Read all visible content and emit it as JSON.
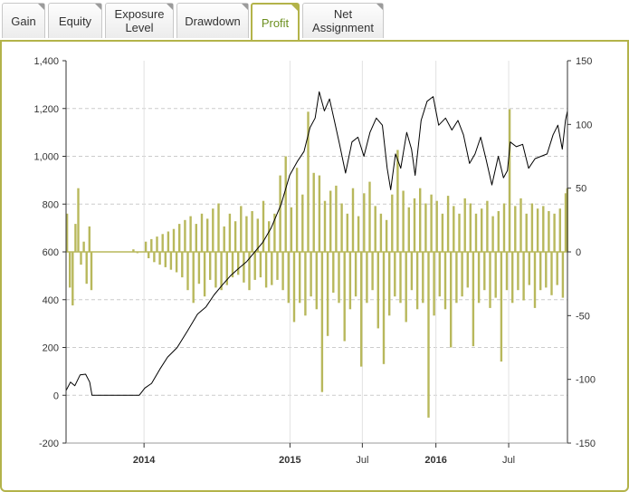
{
  "tabs": [
    {
      "label": "Gain",
      "active": false
    },
    {
      "label": "Equity",
      "active": false
    },
    {
      "label": "Exposure\nLevel",
      "active": false
    },
    {
      "label": "Drawdown",
      "active": false
    },
    {
      "label": "Profit",
      "active": true
    },
    {
      "label": "Net\nAssignment",
      "active": false
    }
  ],
  "colors": {
    "line": "#000000",
    "bars": "#b8b85c",
    "accent": "#b3b34a",
    "grid": "#cccccc"
  },
  "chart_data": {
    "type": "bar+line",
    "title": "",
    "grid": true,
    "x_axis": {
      "type": "date",
      "range": [
        "2013-06-20",
        "2016-11-25"
      ],
      "ticks": [
        {
          "label": "2014",
          "date": "2014-01-01",
          "bold": true
        },
        {
          "label": "2015",
          "date": "2015-01-01",
          "bold": true
        },
        {
          "label": "Jul",
          "date": "2015-07-01",
          "bold": false
        },
        {
          "label": "2016",
          "date": "2016-01-01",
          "bold": true
        },
        {
          "label": "Jul",
          "date": "2016-07-01",
          "bold": false
        }
      ]
    },
    "y_left": {
      "min": -200,
      "max": 1400,
      "ticks": [
        "-200",
        "0",
        "200",
        "400",
        "600",
        "800",
        "1,000",
        "1,200",
        "1,400"
      ],
      "values": [
        -200,
        0,
        200,
        400,
        600,
        800,
        1000,
        1200,
        1400
      ]
    },
    "y_right": {
      "min": -150,
      "max": 150,
      "ticks": [
        "-150",
        "-100",
        "-50",
        "0",
        "50",
        "100",
        "150"
      ],
      "values": [
        -150,
        -100,
        -50,
        0,
        50,
        100,
        150
      ]
    },
    "series": [
      {
        "kind": "line",
        "axis": "left",
        "points": [
          [
            "2013-06-20",
            20
          ],
          [
            "2013-07-01",
            55
          ],
          [
            "2013-07-12",
            40
          ],
          [
            "2013-07-25",
            85
          ],
          [
            "2013-08-08",
            88
          ],
          [
            "2013-08-18",
            55
          ],
          [
            "2013-08-24",
            0
          ],
          [
            "2013-09-20",
            0
          ],
          [
            "2013-10-20",
            0
          ],
          [
            "2013-11-20",
            0
          ],
          [
            "2013-12-20",
            0
          ],
          [
            "2014-01-03",
            30
          ],
          [
            "2014-01-20",
            50
          ],
          [
            "2014-02-10",
            110
          ],
          [
            "2014-03-01",
            160
          ],
          [
            "2014-03-25",
            200
          ],
          [
            "2014-04-20",
            270
          ],
          [
            "2014-05-15",
            340
          ],
          [
            "2014-06-05",
            370
          ],
          [
            "2014-06-25",
            420
          ],
          [
            "2014-07-15",
            460
          ],
          [
            "2014-08-05",
            500
          ],
          [
            "2014-08-25",
            530
          ],
          [
            "2014-09-15",
            560
          ],
          [
            "2014-10-05",
            600
          ],
          [
            "2014-10-25",
            640
          ],
          [
            "2014-11-15",
            700
          ],
          [
            "2014-12-10",
            800
          ],
          [
            "2014-12-31",
            920
          ],
          [
            "2015-01-20",
            980
          ],
          [
            "2015-02-05",
            1020
          ],
          [
            "2015-02-20",
            1120
          ],
          [
            "2015-03-05",
            1160
          ],
          [
            "2015-03-15",
            1270
          ],
          [
            "2015-03-28",
            1190
          ],
          [
            "2015-04-10",
            1240
          ],
          [
            "2015-04-22",
            1150
          ],
          [
            "2015-05-05",
            1050
          ],
          [
            "2015-05-20",
            930
          ],
          [
            "2015-06-05",
            1060
          ],
          [
            "2015-06-20",
            1080
          ],
          [
            "2015-07-05",
            1000
          ],
          [
            "2015-07-20",
            1100
          ],
          [
            "2015-08-05",
            1160
          ],
          [
            "2015-08-20",
            1130
          ],
          [
            "2015-09-01",
            950
          ],
          [
            "2015-09-10",
            860
          ],
          [
            "2015-09-22",
            1010
          ],
          [
            "2015-10-05",
            950
          ],
          [
            "2015-10-20",
            1100
          ],
          [
            "2015-11-01",
            1030
          ],
          [
            "2015-11-10",
            920
          ],
          [
            "2015-11-25",
            1150
          ],
          [
            "2015-12-10",
            1230
          ],
          [
            "2015-12-25",
            1250
          ],
          [
            "2016-01-08",
            1130
          ],
          [
            "2016-01-25",
            1160
          ],
          [
            "2016-02-10",
            1110
          ],
          [
            "2016-02-25",
            1150
          ],
          [
            "2016-03-10",
            1090
          ],
          [
            "2016-03-25",
            970
          ],
          [
            "2016-04-08",
            1010
          ],
          [
            "2016-04-22",
            1080
          ],
          [
            "2016-05-05",
            990
          ],
          [
            "2016-05-20",
            880
          ],
          [
            "2016-06-05",
            1000
          ],
          [
            "2016-06-18",
            910
          ],
          [
            "2016-06-28",
            940
          ],
          [
            "2016-07-05",
            1060
          ],
          [
            "2016-07-20",
            1040
          ],
          [
            "2016-08-05",
            1050
          ],
          [
            "2016-08-20",
            950
          ],
          [
            "2016-09-05",
            990
          ],
          [
            "2016-09-20",
            1000
          ],
          [
            "2016-10-05",
            1010
          ],
          [
            "2016-10-20",
            1090
          ],
          [
            "2016-11-01",
            1130
          ],
          [
            "2016-11-12",
            1030
          ],
          [
            "2016-11-20",
            1150
          ],
          [
            "2016-11-25",
            1190
          ]
        ]
      },
      {
        "kind": "bar",
        "axis": "right",
        "points": [
          [
            "2013-06-22",
            30
          ],
          [
            "2013-06-29",
            -28
          ],
          [
            "2013-07-06",
            -42
          ],
          [
            "2013-07-13",
            22
          ],
          [
            "2013-07-20",
            50
          ],
          [
            "2013-07-27",
            -10
          ],
          [
            "2013-08-03",
            8
          ],
          [
            "2013-08-10",
            -25
          ],
          [
            "2013-08-17",
            20
          ],
          [
            "2013-08-22",
            -30
          ],
          [
            "2013-12-05",
            2
          ],
          [
            "2013-12-15",
            -1
          ],
          [
            "2014-01-05",
            8
          ],
          [
            "2014-01-12",
            -5
          ],
          [
            "2014-01-19",
            10
          ],
          [
            "2014-01-26",
            -8
          ],
          [
            "2014-02-02",
            12
          ],
          [
            "2014-02-09",
            -10
          ],
          [
            "2014-02-16",
            14
          ],
          [
            "2014-02-23",
            -12
          ],
          [
            "2014-03-02",
            16
          ],
          [
            "2014-03-09",
            -14
          ],
          [
            "2014-03-16",
            18
          ],
          [
            "2014-03-23",
            -16
          ],
          [
            "2014-03-30",
            22
          ],
          [
            "2014-04-06",
            -20
          ],
          [
            "2014-04-13",
            25
          ],
          [
            "2014-04-20",
            -30
          ],
          [
            "2014-04-27",
            28
          ],
          [
            "2014-05-04",
            -40
          ],
          [
            "2014-05-11",
            22
          ],
          [
            "2014-05-18",
            -25
          ],
          [
            "2014-05-25",
            30
          ],
          [
            "2014-06-01",
            -35
          ],
          [
            "2014-06-08",
            26
          ],
          [
            "2014-06-15",
            -22
          ],
          [
            "2014-06-22",
            34
          ],
          [
            "2014-06-29",
            -28
          ],
          [
            "2014-07-06",
            38
          ],
          [
            "2014-07-13",
            -30
          ],
          [
            "2014-07-20",
            20
          ],
          [
            "2014-07-27",
            -26
          ],
          [
            "2014-08-03",
            30
          ],
          [
            "2014-08-10",
            -20
          ],
          [
            "2014-08-17",
            24
          ],
          [
            "2014-08-24",
            -18
          ],
          [
            "2014-08-31",
            36
          ],
          [
            "2014-09-07",
            -24
          ],
          [
            "2014-09-14",
            28
          ],
          [
            "2014-09-21",
            -30
          ],
          [
            "2014-09-28",
            32
          ],
          [
            "2014-10-05",
            -22
          ],
          [
            "2014-10-12",
            26
          ],
          [
            "2014-10-19",
            -20
          ],
          [
            "2014-10-26",
            40
          ],
          [
            "2014-11-02",
            -28
          ],
          [
            "2014-11-09",
            24
          ],
          [
            "2014-11-16",
            -26
          ],
          [
            "2014-11-23",
            30
          ],
          [
            "2014-11-30",
            -22
          ],
          [
            "2014-12-07",
            60
          ],
          [
            "2014-12-14",
            -30
          ],
          [
            "2014-12-21",
            75
          ],
          [
            "2014-12-28",
            -40
          ],
          [
            "2015-01-04",
            35
          ],
          [
            "2015-01-11",
            -55
          ],
          [
            "2015-01-18",
            66
          ],
          [
            "2015-01-25",
            -40
          ],
          [
            "2015-02-01",
            45
          ],
          [
            "2015-02-08",
            -50
          ],
          [
            "2015-02-15",
            110
          ],
          [
            "2015-02-22",
            -35
          ],
          [
            "2015-03-01",
            62
          ],
          [
            "2015-03-08",
            -45
          ],
          [
            "2015-03-15",
            60
          ],
          [
            "2015-03-22",
            -110
          ],
          [
            "2015-03-29",
            40
          ],
          [
            "2015-04-05",
            -66
          ],
          [
            "2015-04-12",
            48
          ],
          [
            "2015-04-19",
            -32
          ],
          [
            "2015-04-26",
            52
          ],
          [
            "2015-05-03",
            -40
          ],
          [
            "2015-05-10",
            38
          ],
          [
            "2015-05-17",
            -70
          ],
          [
            "2015-05-24",
            30
          ],
          [
            "2015-05-31",
            -45
          ],
          [
            "2015-06-07",
            50
          ],
          [
            "2015-06-14",
            -35
          ],
          [
            "2015-06-21",
            28
          ],
          [
            "2015-06-28",
            -90
          ],
          [
            "2015-07-05",
            46
          ],
          [
            "2015-07-12",
            -40
          ],
          [
            "2015-07-19",
            55
          ],
          [
            "2015-07-26",
            -30
          ],
          [
            "2015-08-02",
            36
          ],
          [
            "2015-08-09",
            -60
          ],
          [
            "2015-08-16",
            30
          ],
          [
            "2015-08-23",
            -88
          ],
          [
            "2015-08-30",
            25
          ],
          [
            "2015-09-06",
            -50
          ],
          [
            "2015-09-13",
            45
          ],
          [
            "2015-09-20",
            -35
          ],
          [
            "2015-09-27",
            80
          ],
          [
            "2015-10-04",
            -40
          ],
          [
            "2015-10-11",
            48
          ],
          [
            "2015-10-18",
            -55
          ],
          [
            "2015-10-25",
            35
          ],
          [
            "2015-11-01",
            -30
          ],
          [
            "2015-11-08",
            42
          ],
          [
            "2015-11-15",
            -45
          ],
          [
            "2015-11-22",
            50
          ],
          [
            "2015-11-29",
            -40
          ],
          [
            "2015-12-06",
            38
          ],
          [
            "2015-12-13",
            -130
          ],
          [
            "2015-12-20",
            45
          ],
          [
            "2015-12-27",
            -50
          ],
          [
            "2016-01-03",
            40
          ],
          [
            "2016-01-10",
            -35
          ],
          [
            "2016-01-17",
            30
          ],
          [
            "2016-01-24",
            -45
          ],
          [
            "2016-01-31",
            44
          ],
          [
            "2016-02-07",
            -75
          ],
          [
            "2016-02-14",
            36
          ],
          [
            "2016-02-21",
            -40
          ],
          [
            "2016-02-28",
            30
          ],
          [
            "2016-03-06",
            -35
          ],
          [
            "2016-03-13",
            42
          ],
          [
            "2016-03-20",
            -28
          ],
          [
            "2016-03-27",
            38
          ],
          [
            "2016-04-03",
            -74
          ],
          [
            "2016-04-10",
            30
          ],
          [
            "2016-04-17",
            -40
          ],
          [
            "2016-04-24",
            34
          ],
          [
            "2016-05-01",
            -30
          ],
          [
            "2016-05-08",
            40
          ],
          [
            "2016-05-15",
            -44
          ],
          [
            "2016-05-22",
            28
          ],
          [
            "2016-05-29",
            -36
          ],
          [
            "2016-06-05",
            32
          ],
          [
            "2016-06-12",
            -86
          ],
          [
            "2016-06-19",
            38
          ],
          [
            "2016-06-26",
            -30
          ],
          [
            "2016-07-03",
            112
          ],
          [
            "2016-07-10",
            -40
          ],
          [
            "2016-07-17",
            36
          ],
          [
            "2016-07-24",
            -30
          ],
          [
            "2016-07-31",
            42
          ],
          [
            "2016-08-07",
            -38
          ],
          [
            "2016-08-14",
            30
          ],
          [
            "2016-08-21",
            -26
          ],
          [
            "2016-08-28",
            38
          ],
          [
            "2016-09-04",
            -44
          ],
          [
            "2016-09-11",
            34
          ],
          [
            "2016-09-18",
            -30
          ],
          [
            "2016-09-25",
            36
          ],
          [
            "2016-10-02",
            -28
          ],
          [
            "2016-10-09",
            32
          ],
          [
            "2016-10-16",
            -34
          ],
          [
            "2016-10-23",
            30
          ],
          [
            "2016-10-30",
            -26
          ],
          [
            "2016-11-06",
            34
          ],
          [
            "2016-11-13",
            -36
          ],
          [
            "2016-11-20",
            46
          ],
          [
            "2016-11-24",
            50
          ]
        ]
      }
    ]
  }
}
